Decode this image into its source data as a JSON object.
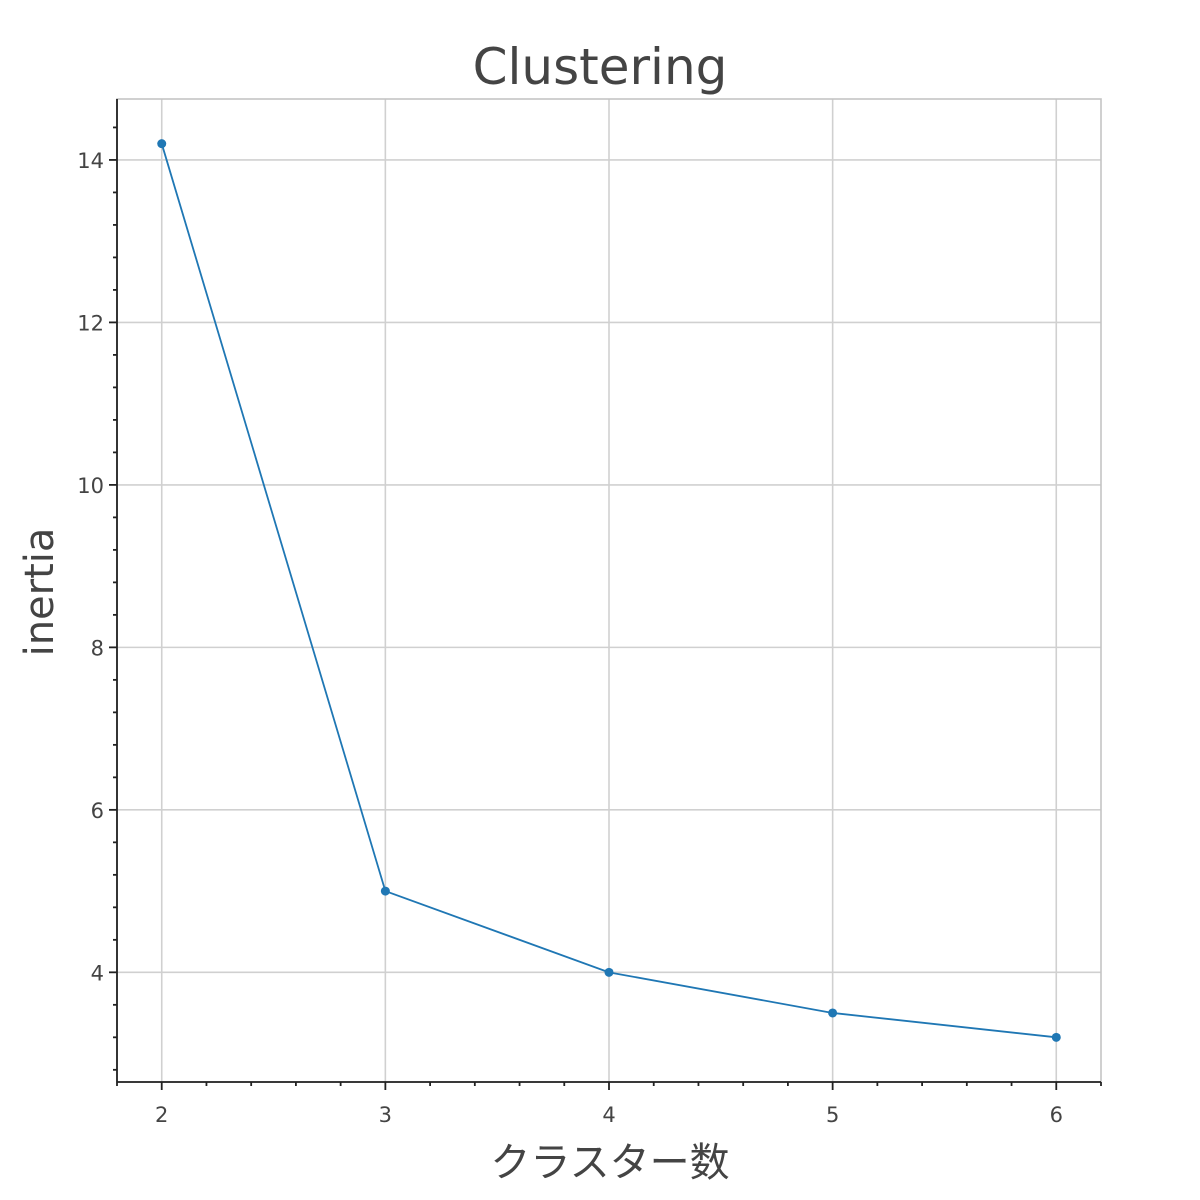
{
  "chart_data": {
    "type": "line",
    "title": "Clustering",
    "xlabel": "クラスター数",
    "ylabel": "inertia",
    "x": [
      2,
      3,
      4,
      5,
      6
    ],
    "series": [
      {
        "values": [
          14.2,
          5.0,
          4.0,
          3.5,
          3.2
        ],
        "color": "#1f77b4",
        "marker": "circle"
      }
    ],
    "xlim": [
      1.8,
      6.2
    ],
    "ylim": [
      2.65,
      14.75
    ],
    "xticks": [
      2,
      3,
      4,
      5,
      6
    ],
    "yticks": [
      4,
      6,
      8,
      10,
      12,
      14
    ],
    "grid": true,
    "legend": "none"
  }
}
